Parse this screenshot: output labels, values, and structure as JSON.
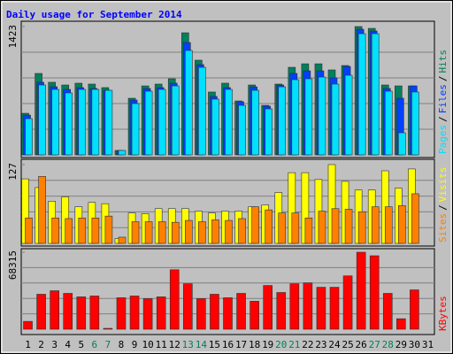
{
  "chart_data": {
    "type": "bar",
    "title": "Daily usage for September 2014",
    "categories": [
      "1",
      "2",
      "3",
      "4",
      "5",
      "6",
      "7",
      "8",
      "9",
      "10",
      "11",
      "12",
      "13",
      "14",
      "15",
      "16",
      "17",
      "18",
      "19",
      "20",
      "21",
      "22",
      "23",
      "24",
      "25",
      "26",
      "27",
      "28",
      "29",
      "30",
      "31"
    ],
    "category_colors": [
      "#000000",
      "#000000",
      "#000000",
      "#000000",
      "#000000",
      "#00805c",
      "#00805c",
      "#000000",
      "#000000",
      "#000000",
      "#000000",
      "#000000",
      "#00805c",
      "#00805c",
      "#000000",
      "#000000",
      "#000000",
      "#000000",
      "#000000",
      "#00805c",
      "#00805c",
      "#000000",
      "#000000",
      "#000000",
      "#000000",
      "#000000",
      "#00805c",
      "#00805c",
      "#000000",
      "#000000",
      "#000000"
    ],
    "legend_separator": "/",
    "panels": [
      {
        "ylim": [
          0,
          1423
        ],
        "yticks": [
          1423
        ],
        "series": [
          {
            "name": "Hits",
            "color": "#00805c",
            "values": [
              461,
              903,
              805,
              775,
              795,
              785,
              746,
              49,
              628,
              765,
              785,
              844,
              1354,
              1050,
              697,
              795,
              598,
              775,
              549,
              785,
              971,
              1010,
              1010,
              942,
              991,
              1423,
              1403,
              775,
              765,
              765,
              0
            ]
          },
          {
            "name": "Files",
            "color": "#0040ff",
            "values": [
              441,
              805,
              756,
              726,
              746,
              736,
              716,
              49,
              608,
              736,
              746,
              795,
              1246,
              1001,
              648,
              746,
              589,
              755,
              540,
              775,
              903,
              932,
              932,
              854,
              981,
              1393,
              1374,
              736,
              628,
              765,
              0
            ]
          },
          {
            "name": "Pages",
            "color": "#00e0ff",
            "values": [
              402,
              775,
              726,
              687,
              726,
              726,
              716,
              49,
              569,
              706,
              726,
              765,
              1158,
              971,
              618,
              726,
              549,
              716,
              510,
              755,
              834,
              844,
              863,
              785,
              883,
              1344,
              1344,
              706,
              245,
              697,
              0
            ]
          }
        ]
      },
      {
        "ylim": [
          0,
          127
        ],
        "yticks": [
          127
        ],
        "series": [
          {
            "name": "Visits",
            "color": "#ffff00",
            "values": [
              104,
              90,
              68,
              75,
              59,
              66,
              64,
              8,
              49,
              48,
              56,
              56,
              56,
              52,
              49,
              52,
              52,
              59,
              62,
              82,
              114,
              114,
              103,
              127,
              100,
              86,
              86,
              117,
              89,
              120,
              0
            ]
          },
          {
            "name": "Sites",
            "color": "#ff8000",
            "values": [
              41,
              108,
              41,
              40,
              41,
              41,
              44,
              10,
              35,
              35,
              35,
              34,
              37,
              35,
              38,
              37,
              40,
              59,
              54,
              49,
              49,
              41,
              52,
              56,
              55,
              51,
              59,
              59,
              61,
              80,
              0
            ]
          }
        ]
      },
      {
        "ylim": [
          0,
          68315
        ],
        "yticks": [
          68315
        ],
        "series": [
          {
            "name": "KBytes",
            "color": "#ff0000",
            "values": [
              6984,
              31040,
              34144,
              31816,
              28712,
              29488,
              776,
              27936,
              29488,
              27160,
              28712,
              52768,
              40352,
              27160,
              31040,
              27936,
              31816,
              24832,
              38800,
              32592,
              40352,
              41128,
              37248,
              37248,
              47336,
              68315,
              65184,
              31816,
              9312,
              34920,
              0
            ]
          }
        ]
      }
    ]
  }
}
